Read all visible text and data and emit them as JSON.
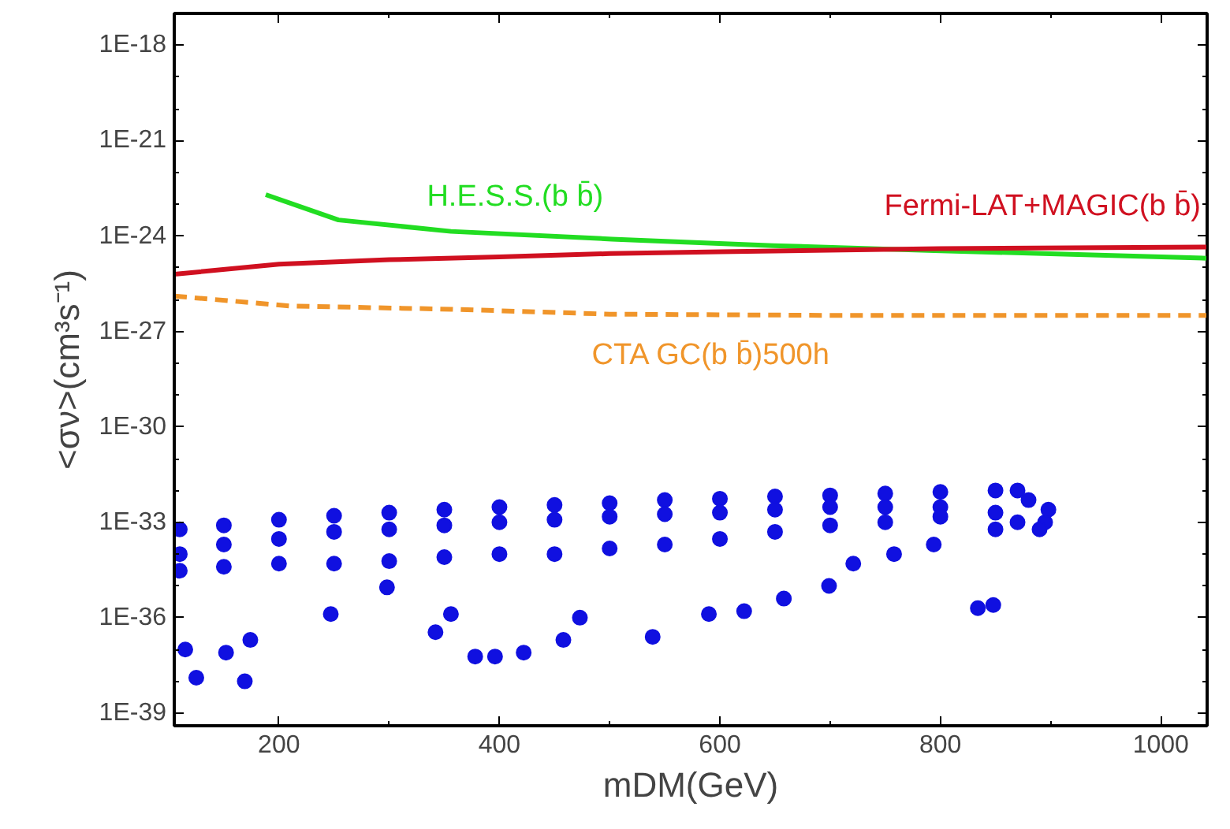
{
  "chart_data": {
    "type": "line",
    "xlabel": "mDM(GeV)",
    "ylabel": "<σν>(cm³s⁻¹)",
    "log": "y",
    "grid": false,
    "xlim": [
      105,
      1042
    ],
    "ylim": [
      4e-40,
      1e-17
    ],
    "xticks": [
      200,
      400,
      600,
      800,
      1000
    ],
    "yticks": [
      {
        "value": 1e-18,
        "label": "1E-18"
      },
      {
        "value": 1e-21,
        "label": "1E-21"
      },
      {
        "value": 1e-24,
        "label": "1E-24"
      },
      {
        "value": 1e-27,
        "label": "1E-27"
      },
      {
        "value": 1e-30,
        "label": "1E-30"
      },
      {
        "value": 1e-33,
        "label": "1E-33"
      },
      {
        "value": 1e-36,
        "label": "1E-36"
      },
      {
        "value": 1e-39,
        "label": "1E-39"
      }
    ],
    "tick_labels": [
      "x",
      "y"
    ],
    "series": [
      {
        "name": "H.E.S.S.(b b̄)",
        "color": "#22dd22",
        "line_style": "solid",
        "x": [
          188,
          254,
          356,
          502,
          648,
          794,
          1042
        ],
        "values": [
          2e-23,
          3.2e-24,
          1.4e-24,
          8e-25,
          5e-25,
          3.5e-25,
          2e-25
        ]
      },
      {
        "name": "Fermi-LAT+MAGIC(b b̄)",
        "color": "#d01020",
        "line_style": "solid",
        "x": [
          105,
          200,
          300,
          400,
          500,
          600,
          800,
          1042
        ],
        "values": [
          6.3e-26,
          1.3e-25,
          1.8e-25,
          2.2e-25,
          2.8e-25,
          3.2e-25,
          4e-25,
          4.5e-25
        ]
      },
      {
        "name": "CTA GC(b b̄)500h",
        "color": "#f0952a",
        "line_style": "dashed",
        "x": [
          105,
          210,
          356,
          500,
          700,
          1042
        ],
        "values": [
          1.3e-26,
          6.3e-27,
          5e-27,
          3.5e-27,
          3.2e-27,
          3.2e-27
        ]
      },
      {
        "type": "scatter",
        "color": "#1010e0",
        "marker": "circle",
        "x": [
          110,
          150,
          200,
          250,
          300,
          350,
          400,
          450,
          500,
          550,
          600,
          650,
          700,
          750,
          800,
          850,
          870,
          880,
          895,
          890,
          110,
          150,
          200,
          250,
          300,
          350,
          400,
          450,
          500,
          550,
          600,
          650,
          700,
          750,
          800,
          850,
          870,
          110,
          150,
          200,
          250,
          300,
          350,
          400,
          450,
          500,
          550,
          600,
          650,
          700,
          750,
          800,
          850,
          125,
          169,
          115,
          152,
          174,
          342,
          378,
          396,
          422,
          458,
          539,
          834,
          848,
          622,
          658,
          699,
          590,
          356,
          247,
          473,
          298,
          794,
          758,
          721,
          898
        ],
        "values": [
          6e-34,
          8e-34,
          1.2e-33,
          1.6e-33,
          2e-33,
          2.5e-33,
          3e-33,
          3.5e-33,
          4e-33,
          5e-33,
          5.5e-33,
          6.5e-33,
          7e-33,
          8e-33,
          9e-33,
          1e-32,
          1e-32,
          5e-33,
          1e-33,
          6e-34,
          1e-34,
          2e-34,
          3e-34,
          5e-34,
          6e-34,
          8e-34,
          1e-33,
          1.2e-33,
          1.5e-33,
          1.8e-33,
          2e-33,
          2.5e-33,
          3e-33,
          3e-33,
          3e-33,
          2e-33,
          1e-33,
          3e-35,
          4e-35,
          5e-35,
          5e-35,
          6e-35,
          8e-35,
          1e-34,
          1e-34,
          1.5e-34,
          2e-34,
          3e-34,
          5e-34,
          8e-34,
          1e-33,
          1.5e-33,
          6e-34,
          1.3e-38,
          1e-38,
          1e-37,
          8e-38,
          2e-37,
          3.5e-37,
          6e-38,
          6e-38,
          8e-38,
          2e-37,
          2.5e-37,
          2e-36,
          2.5e-36,
          1.6e-36,
          4e-36,
          1e-35,
          1.3e-36,
          1.3e-36,
          1.3e-36,
          1e-36,
          9e-36,
          2e-34,
          1e-34,
          5e-35,
          2.5e-33
        ]
      }
    ]
  }
}
